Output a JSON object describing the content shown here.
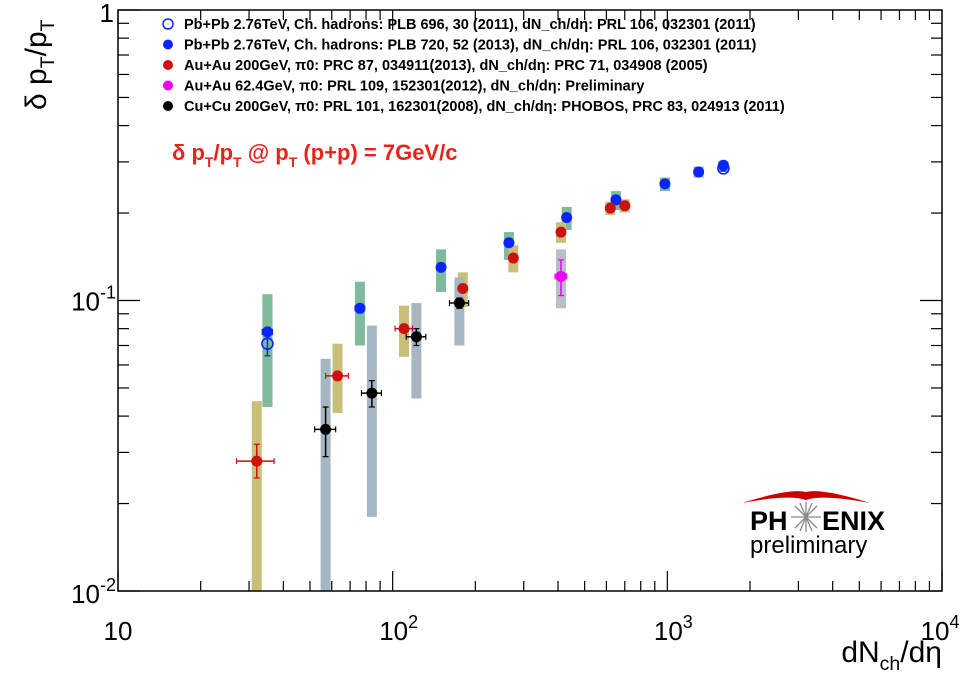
{
  "chart_data": {
    "type": "scatter",
    "xscale": "log",
    "yscale": "log",
    "xlim": [
      10,
      10000
    ],
    "ylim": [
      0.01,
      1
    ],
    "xlabel": "dN_ch/dη",
    "ylabel": "δ p_T/p_T",
    "x_tick_labels": [
      "10",
      "10^2",
      "10^3",
      "10^4"
    ],
    "y_tick_labels": [
      "10^-2",
      "10^-1",
      "1"
    ],
    "annotation": "δ p_T/p_T @ p_T (p+p) = 7GeV/c",
    "legend_position": "top-left",
    "series": [
      {
        "name": "Pb+Pb 2.76TeV, Ch. hadrons: PLB 696, 30 (2011), dN_ch/dη: PRL 106, 032301 (2011)",
        "color": "#0b24fb",
        "marker": "open-circle",
        "band_color": "#7fba9c",
        "points": [
          {
            "x": 35,
            "y": 0.071,
            "yerr_lo": 0.0065,
            "yerr_hi": 0.0065,
            "sys_lo": 0.043,
            "sys_hi": 0.105
          },
          {
            "x": 1600,
            "y": 0.285,
            "yerr_lo": 0.006,
            "yerr_hi": 0.006,
            "sys_lo": 0.277,
            "sys_hi": 0.293
          }
        ]
      },
      {
        "name": "Pb+Pb 2.76TeV, Ch. hadrons: PLB 720, 52 (2013), dN_ch/dη: PRL 106, 032301 (2011)",
        "color": "#0b24fb",
        "marker": "filled-circle",
        "band_color": "#7fba9c",
        "points": [
          {
            "x": 35,
            "y": 0.078,
            "xerr": 1.5,
            "sys_lo": 0.043,
            "sys_hi": 0.105
          },
          {
            "x": 76,
            "y": 0.094,
            "xerr": 3,
            "sys_lo": 0.07,
            "sys_hi": 0.116
          },
          {
            "x": 150,
            "y": 0.13,
            "sys_lo": 0.107,
            "sys_hi": 0.15
          },
          {
            "x": 265,
            "y": 0.158,
            "sys_lo": 0.138,
            "sys_hi": 0.172
          },
          {
            "x": 430,
            "y": 0.193,
            "sys_lo": 0.175,
            "sys_hi": 0.21
          },
          {
            "x": 650,
            "y": 0.222,
            "sys_lo": 0.205,
            "sys_hi": 0.238
          },
          {
            "x": 980,
            "y": 0.252,
            "sys_lo": 0.238,
            "sys_hi": 0.265
          },
          {
            "x": 1300,
            "y": 0.277,
            "sys_lo": 0.265,
            "sys_hi": 0.289
          },
          {
            "x": 1600,
            "y": 0.292,
            "sys_lo": 0.28,
            "sys_hi": 0.302
          }
        ]
      },
      {
        "name": "Au+Au 200GeV, π0: PRC 87, 034911(2013), dN_ch/dη: PRC 71, 034908 (2005)",
        "color": "#cc1111",
        "marker": "filled-circle",
        "band_color": "#c9bf78",
        "points": [
          {
            "x": 32,
            "y": 0.028,
            "xerr": 5,
            "yerr_lo": 0.0035,
            "yerr_hi": 0.004,
            "sys_lo": 0.01,
            "sys_hi": 0.045
          },
          {
            "x": 63,
            "y": 0.055,
            "xerr": 6,
            "sys_lo": 0.041,
            "sys_hi": 0.071
          },
          {
            "x": 110,
            "y": 0.08,
            "xerr": 8,
            "sys_lo": 0.064,
            "sys_hi": 0.096
          },
          {
            "x": 180,
            "y": 0.11,
            "sys_lo": 0.095,
            "sys_hi": 0.125
          },
          {
            "x": 275,
            "y": 0.14,
            "sys_lo": 0.125,
            "sys_hi": 0.155
          },
          {
            "x": 410,
            "y": 0.172,
            "sys_lo": 0.158,
            "sys_hi": 0.186
          },
          {
            "x": 620,
            "y": 0.208,
            "sys_lo": 0.197,
            "sys_hi": 0.219
          },
          {
            "x": 700,
            "y": 0.212,
            "sys_lo": 0.201,
            "sys_hi": 0.223
          }
        ]
      },
      {
        "name": "Au+Au 62.4GeV, π0: PRL 109, 152301(2012), dN_ch/dη: Preliminary",
        "color": "#ee00ee",
        "marker": "filled-circle",
        "band_color": "#b8bfc8",
        "points": [
          {
            "x": 410,
            "y": 0.121,
            "xerr": 20,
            "yerr_lo": 0.017,
            "yerr_hi": 0.017,
            "sys_lo": 0.094,
            "sys_hi": 0.15
          }
        ]
      },
      {
        "name": "Cu+Cu 200GeV, π0: PRL 101, 162301(2008), dN_ch/dη: PHOBOS, PRC 83, 024913 (2011)",
        "color": "#000000",
        "marker": "filled-circle",
        "band_color": "#a7b6c3",
        "points": [
          {
            "x": 57,
            "y": 0.036,
            "xerr": 5,
            "yerr_lo": 0.007,
            "yerr_hi": 0.007,
            "sys_lo": 0.01,
            "sys_hi": 0.063
          },
          {
            "x": 84,
            "y": 0.048,
            "xerr": 7,
            "yerr_lo": 0.005,
            "yerr_hi": 0.005,
            "sys_lo": 0.018,
            "sys_hi": 0.082
          },
          {
            "x": 122,
            "y": 0.075,
            "xerr": 10,
            "yerr_lo": 0.005,
            "yerr_hi": 0.005,
            "sys_lo": 0.046,
            "sys_hi": 0.098
          },
          {
            "x": 175,
            "y": 0.098,
            "xerr": 14,
            "yerr_lo": 0.004,
            "yerr_hi": 0.004,
            "sys_lo": 0.07,
            "sys_hi": 0.12
          }
        ]
      }
    ],
    "logo": {
      "text_left": "PH",
      "text_right": "ENIX",
      "subtitle": "preliminary"
    }
  }
}
